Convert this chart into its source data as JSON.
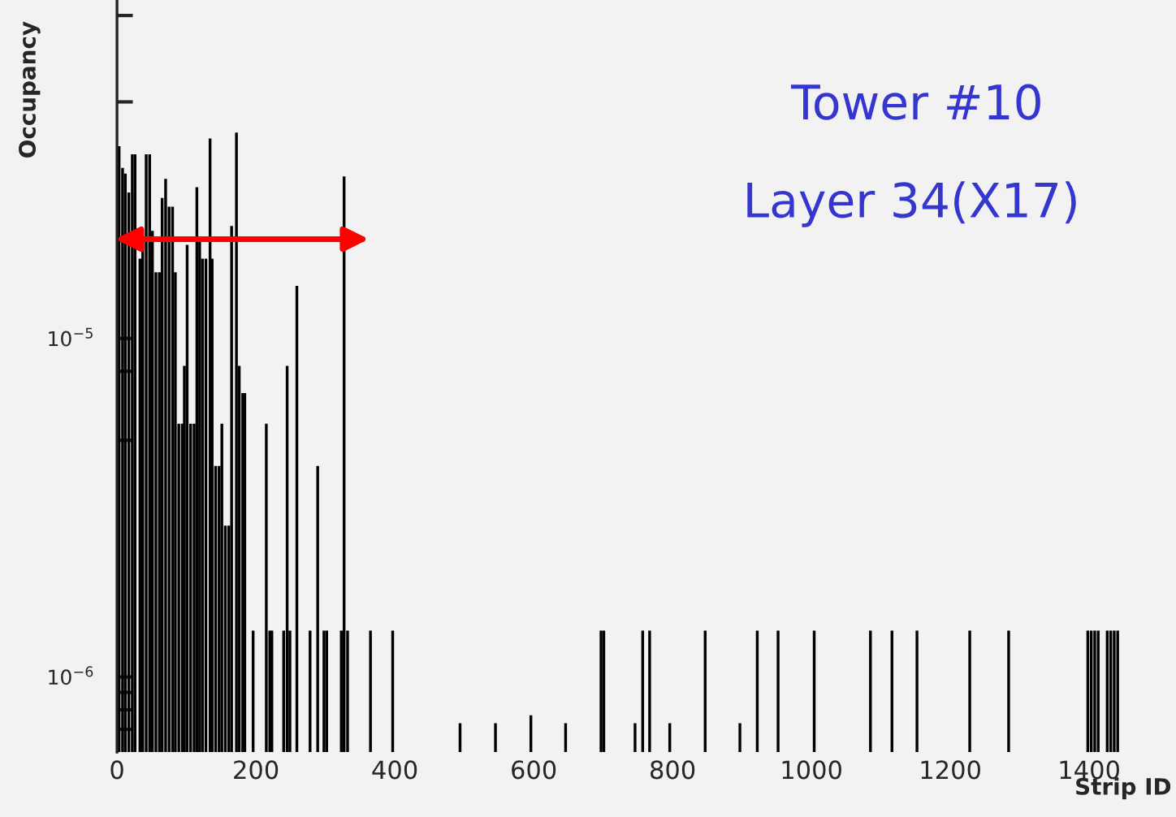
{
  "chart_data": {
    "type": "bar",
    "xlabel": "Strip ID",
    "ylabel": "Occupancy",
    "annotations": [
      "Tower #10",
      "Layer 34(X17)"
    ],
    "x": [
      3,
      8,
      12,
      17,
      22,
      26,
      33,
      37,
      42,
      47,
      51,
      56,
      61,
      65,
      70,
      75,
      80,
      84,
      89,
      94,
      97,
      101,
      106,
      111,
      115,
      119,
      123,
      128,
      134,
      137,
      142,
      147,
      151,
      156,
      161,
      165,
      172,
      176,
      181,
      184,
      196,
      215,
      220,
      223,
      240,
      245,
      249,
      259,
      278,
      289,
      298,
      302,
      323,
      327,
      332,
      365,
      397,
      494,
      545,
      596,
      646,
      697,
      701,
      746,
      757,
      767,
      796,
      847,
      897,
      922,
      952,
      1004,
      1085,
      1116,
      1152,
      1228,
      1284,
      1398,
      1403,
      1408,
      1413,
      1426,
      1431,
      1436,
      1441
    ],
    "values": [
      3.7e-05,
      3.19e-05,
      3.07e-05,
      2.7e-05,
      3.5e-05,
      3.5e-05,
      1.72e-05,
      1.93e-05,
      3.5e-05,
      3.5e-05,
      2.08e-05,
      1.57e-05,
      1.57e-05,
      2.6e-05,
      2.96e-05,
      2.45e-05,
      2.45e-05,
      1.57e-05,
      5.6e-06,
      5.6e-06,
      8.3e-06,
      1.89e-05,
      5.6e-06,
      5.6e-06,
      2.8e-05,
      2e-05,
      1.72e-05,
      1.72e-05,
      3.9e-05,
      1.72e-05,
      4.2e-06,
      4.2e-06,
      5.6e-06,
      2.8e-06,
      2.8e-06,
      2.15e-05,
      4.06e-05,
      8.3e-06,
      6.9e-06,
      6.9e-06,
      1.37e-06,
      5.6e-06,
      1.37e-06,
      1.37e-06,
      1.37e-06,
      8.3e-06,
      1.37e-06,
      1.43e-05,
      1.37e-06,
      4.2e-06,
      1.37e-06,
      1.37e-06,
      1.37e-06,
      3.01e-05,
      1.37e-06,
      1.37e-06,
      1.37e-06,
      7.3e-07,
      7.3e-07,
      7.7e-07,
      7.3e-07,
      1.37e-06,
      1.37e-06,
      7.3e-07,
      1.37e-06,
      1.37e-06,
      7.3e-07,
      1.37e-06,
      7.3e-07,
      1.37e-06,
      1.37e-06,
      1.37e-06,
      1.37e-06,
      1.37e-06,
      1.37e-06,
      1.37e-06,
      1.37e-06,
      1.37e-06,
      1.37e-06,
      1.37e-06,
      1.37e-06,
      1.37e-06,
      1.37e-06,
      1.37e-06,
      1.37e-06
    ],
    "color": "#000000",
    "log": "y",
    "xlim": [
      0,
      1525
    ],
    "xticks": [
      0,
      200,
      400,
      600,
      800,
      1000,
      1200,
      1400
    ],
    "ylim": [
      6e-07,
      0.0001
    ],
    "yticks": [
      {
        "value": 7e-07,
        "label": null
      },
      {
        "value": 8e-07,
        "label": null
      },
      {
        "value": 9e-07,
        "label": null
      },
      {
        "value": 1e-06,
        "label": "10$^{−6}$"
      },
      {
        "value": 5e-06,
        "label": null
      },
      {
        "value": 8e-06,
        "label": null
      },
      {
        "value": 1e-05,
        "label": "10$^{−5}$"
      },
      {
        "value": 5e-05,
        "label": null
      },
      {
        "value": 9e-05,
        "label": null
      }
    ],
    "grid": false,
    "legend": false
  }
}
